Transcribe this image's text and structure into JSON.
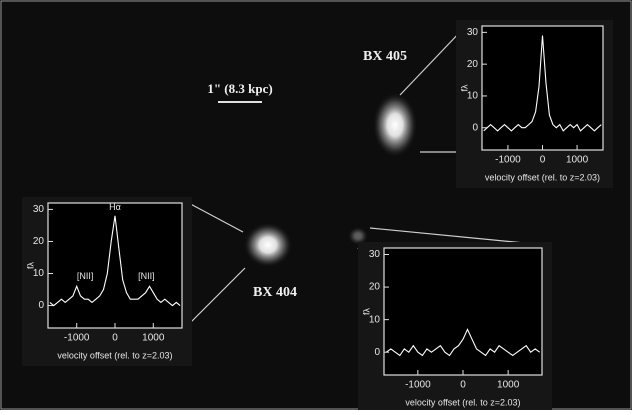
{
  "labels": {
    "scale_bar": "1\" (8.3 kpc)",
    "objects": [
      "BX 405",
      "BX 404"
    ]
  },
  "chart_data": [
    {
      "type": "line",
      "ylabel": "fλ",
      "xlabel": "velocity offset (rel. to z=2.03)",
      "x": [
        -1700,
        -1600,
        -1500,
        -1400,
        -1300,
        -1200,
        -1100,
        -1000,
        -900,
        -800,
        -700,
        -600,
        -500,
        -400,
        -300,
        -200,
        -100,
        0,
        100,
        200,
        300,
        400,
        500,
        600,
        700,
        800,
        900,
        1000,
        1100,
        1200,
        1300,
        1400,
        1500,
        1600,
        1700
      ],
      "series": [
        {
          "color": "#ffffff",
          "values": [
            -1,
            0,
            1,
            0,
            -1,
            0,
            1,
            0,
            -1,
            0,
            1,
            0,
            0,
            1,
            2,
            5,
            13,
            29,
            14,
            4,
            1,
            0,
            1,
            -1,
            0,
            1,
            0,
            1,
            -1,
            0,
            1,
            0,
            -1,
            0,
            1
          ]
        }
      ],
      "xlim": [
        -1750,
        1750
      ],
      "ylim": [
        -7,
        32
      ],
      "xticks": [
        -1000,
        0,
        1000
      ],
      "yticks": [
        0,
        10,
        20,
        30
      ]
    },
    {
      "type": "line",
      "ylabel": "fλ",
      "xlabel": "velocity offset (rel. to z=2.03)",
      "annotations": [
        "Hα",
        "[NII]",
        "[NII]"
      ],
      "x": [
        -1700,
        -1600,
        -1500,
        -1400,
        -1300,
        -1200,
        -1100,
        -1000,
        -900,
        -800,
        -700,
        -600,
        -500,
        -400,
        -300,
        -200,
        -100,
        0,
        100,
        200,
        300,
        400,
        500,
        600,
        700,
        800,
        900,
        1000,
        1100,
        1200,
        1300,
        1400,
        1500,
        1600,
        1700
      ],
      "series": [
        {
          "color": "#ffffff",
          "values": [
            1,
            0,
            1,
            2,
            1,
            2,
            3,
            6,
            3,
            2,
            2,
            1,
            2,
            3,
            5,
            10,
            20,
            28,
            18,
            8,
            4,
            2,
            2,
            2,
            3,
            4,
            6,
            4,
            2,
            1,
            2,
            1,
            0,
            1,
            0
          ]
        }
      ],
      "xlim": [
        -1750,
        1750
      ],
      "ylim": [
        -7,
        32
      ],
      "xticks": [
        -1000,
        0,
        1000
      ],
      "yticks": [
        0,
        10,
        20,
        30
      ]
    },
    {
      "type": "line",
      "ylabel": "fλ",
      "xlabel": "velocity offset (rel. to z=2.03)",
      "x": [
        -1700,
        -1600,
        -1500,
        -1400,
        -1300,
        -1200,
        -1100,
        -1000,
        -900,
        -800,
        -700,
        -600,
        -500,
        -400,
        -300,
        -200,
        -100,
        0,
        100,
        200,
        300,
        400,
        500,
        600,
        700,
        800,
        900,
        1000,
        1100,
        1200,
        1300,
        1400,
        1500,
        1600,
        1700
      ],
      "series": [
        {
          "color": "#ffffff",
          "values": [
            0,
            1,
            0,
            -1,
            1,
            0,
            2,
            0,
            -1,
            1,
            0,
            1,
            2,
            0,
            -1,
            1,
            2,
            4,
            7,
            4,
            1,
            0,
            -1,
            1,
            0,
            2,
            1,
            0,
            -1,
            0,
            1,
            2,
            0,
            1,
            0
          ]
        }
      ],
      "xlim": [
        -1750,
        1750
      ],
      "ylim": [
        -7,
        32
      ],
      "xticks": [
        -1000,
        0,
        1000
      ],
      "yticks": [
        0,
        10,
        20,
        30
      ]
    }
  ]
}
